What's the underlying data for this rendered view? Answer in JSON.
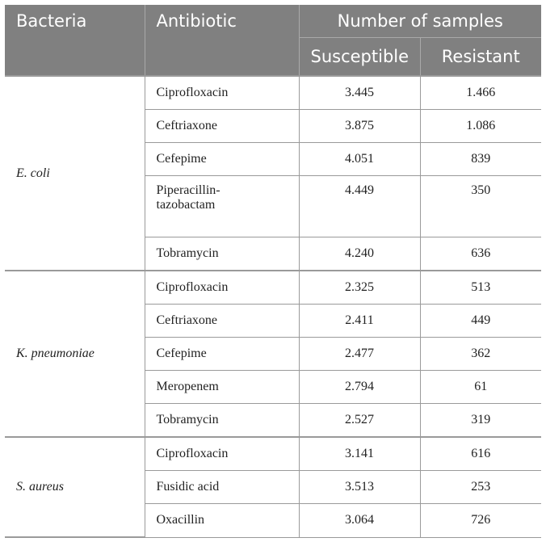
{
  "headers": {
    "bacteria": "Bacteria",
    "antibiotic": "Antibiotic",
    "samples": "Number of samples",
    "susceptible": "Susceptible",
    "resistant": "Resistant"
  },
  "groups": [
    {
      "bacteria": "E. coli",
      "rows": [
        {
          "antibiotic": "Ciprofloxacin",
          "susceptible": "3.445",
          "resistant": "1.466"
        },
        {
          "antibiotic": "Ceftriaxone",
          "susceptible": "3.875",
          "resistant": "1.086"
        },
        {
          "antibiotic": "Cefepime",
          "susceptible": "4.051",
          "resistant": "839"
        },
        {
          "antibiotic_line1": "Piperacillin-",
          "antibiotic_line2": "tazobactam",
          "susceptible": "4.449",
          "resistant": "350"
        },
        {
          "antibiotic": "Tobramycin",
          "susceptible": "4.240",
          "resistant": "636"
        }
      ]
    },
    {
      "bacteria": "K. pneumoniae",
      "rows": [
        {
          "antibiotic": "Ciprofloxacin",
          "susceptible": "2.325",
          "resistant": "513"
        },
        {
          "antibiotic": "Ceftriaxone",
          "susceptible": "2.411",
          "resistant": "449"
        },
        {
          "antibiotic": "Cefepime",
          "susceptible": "2.477",
          "resistant": "362"
        },
        {
          "antibiotic": "Meropenem",
          "susceptible": "2.794",
          "resistant": "61"
        },
        {
          "antibiotic": "Tobramycin",
          "susceptible": "2.527",
          "resistant": "319"
        }
      ]
    },
    {
      "bacteria": "S. aureus",
      "rows": [
        {
          "antibiotic": "Ciprofloxacin",
          "susceptible": "3.141",
          "resistant": "616"
        },
        {
          "antibiotic": "Fusidic acid",
          "susceptible": "3.513",
          "resistant": "253"
        },
        {
          "antibiotic": "Oxacillin",
          "susceptible": "3.064",
          "resistant": "726"
        }
      ]
    }
  ]
}
